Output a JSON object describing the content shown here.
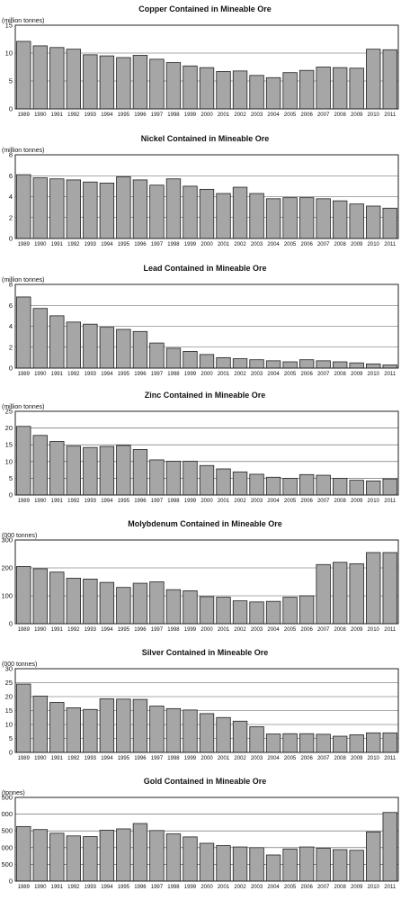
{
  "chart_data": [
    {
      "type": "bar",
      "title": "Copper Contained in Mineable Ore",
      "ylabel": "(million tonnes)",
      "categories": [
        "1989",
        "1990",
        "1991",
        "1992",
        "1993",
        "1994",
        "1995",
        "1996",
        "1997",
        "1998",
        "1999",
        "2000",
        "2001",
        "2002",
        "2003",
        "2004",
        "2005",
        "2006",
        "2007",
        "2008",
        "2009",
        "2010",
        "2011"
      ],
      "values": [
        12.1,
        11.3,
        11.0,
        10.7,
        9.7,
        9.5,
        9.2,
        9.6,
        8.9,
        8.3,
        7.7,
        7.4,
        6.7,
        6.8,
        6.0,
        5.6,
        6.5,
        6.9,
        7.5,
        7.4,
        7.3,
        10.7,
        10.6
      ],
      "ylim": [
        0,
        15
      ],
      "yticks": [
        "0",
        "5",
        "10",
        "15"
      ],
      "grid": "horizontal"
    },
    {
      "type": "bar",
      "title": "Nickel Contained in Mineable Ore",
      "ylabel": "(million tonnes)",
      "categories": [
        "1989",
        "1990",
        "1991",
        "1992",
        "1993",
        "1994",
        "1995",
        "1996",
        "1997",
        "1998",
        "1999",
        "2000",
        "2001",
        "2002",
        "2003",
        "2004",
        "2005",
        "2006",
        "2007",
        "2008",
        "2009",
        "2010",
        "2011"
      ],
      "values": [
        6.1,
        5.8,
        5.7,
        5.6,
        5.4,
        5.3,
        5.9,
        5.6,
        5.1,
        5.7,
        5.0,
        4.7,
        4.3,
        4.9,
        4.3,
        3.8,
        3.9,
        3.9,
        3.8,
        3.6,
        3.3,
        3.1,
        2.9
      ],
      "ylim": [
        0,
        8
      ],
      "yticks": [
        "0",
        "2",
        "4",
        "6",
        "8"
      ],
      "grid": "horizontal"
    },
    {
      "type": "bar",
      "title": "Lead Contained in Mineable Ore",
      "ylabel": "(million tonnes)",
      "categories": [
        "1989",
        "1990",
        "1991",
        "1992",
        "1993",
        "1994",
        "1995",
        "1996",
        "1997",
        "1998",
        "1999",
        "2000",
        "2001",
        "2002",
        "2003",
        "2004",
        "2005",
        "2006",
        "2007",
        "2008",
        "2009",
        "2010",
        "2011"
      ],
      "values": [
        6.8,
        5.7,
        5.0,
        4.4,
        4.2,
        3.9,
        3.7,
        3.5,
        2.4,
        1.9,
        1.6,
        1.3,
        1.0,
        0.9,
        0.8,
        0.7,
        0.6,
        0.8,
        0.7,
        0.6,
        0.5,
        0.4,
        0.3
      ],
      "ylim": [
        0,
        8
      ],
      "yticks": [
        "0",
        "2",
        "4",
        "6",
        "8"
      ],
      "grid": "horizontal"
    },
    {
      "type": "bar",
      "title": "Zinc Contained in Mineable Ore",
      "ylabel": "(million tonnes)",
      "categories": [
        "1989",
        "1990",
        "1991",
        "1992",
        "1993",
        "1994",
        "1995",
        "1996",
        "1997",
        "1998",
        "1999",
        "2000",
        "2001",
        "2002",
        "2003",
        "2004",
        "2005",
        "2006",
        "2007",
        "2008",
        "2009",
        "2010",
        "2011"
      ],
      "values": [
        20.5,
        17.8,
        16.0,
        14.6,
        14.2,
        14.5,
        14.8,
        13.6,
        10.5,
        10.1,
        10.1,
        8.8,
        7.8,
        6.9,
        6.2,
        5.3,
        5.0,
        6.1,
        5.9,
        5.0,
        4.4,
        4.2,
        4.8
      ],
      "ylim": [
        0,
        25
      ],
      "yticks": [
        "0",
        "5",
        "10",
        "15",
        "20",
        "25"
      ],
      "grid": "horizontal"
    },
    {
      "type": "bar",
      "title": "Molybdenum Contained in Mineable Ore",
      "ylabel": "(000 tonnes)",
      "categories": [
        "1989",
        "1990",
        "1991",
        "1992",
        "1993",
        "1994",
        "1995",
        "1996",
        "1997",
        "1998",
        "1999",
        "2000",
        "2001",
        "2002",
        "2003",
        "2004",
        "2005",
        "2006",
        "2007",
        "2008",
        "2009",
        "2010",
        "2011"
      ],
      "values": [
        205,
        197,
        185,
        163,
        160,
        148,
        130,
        145,
        150,
        122,
        118,
        97,
        95,
        82,
        78,
        80,
        95,
        100,
        212,
        220,
        215,
        255,
        255
      ],
      "ylim": [
        0,
        300
      ],
      "yticks": [
        "0",
        "100",
        "200",
        "300"
      ],
      "grid": "horizontal"
    },
    {
      "type": "bar",
      "title": "Silver Contained in Mineable Ore",
      "ylabel": "(000 tonnes)",
      "categories": [
        "1989",
        "1990",
        "1991",
        "1992",
        "1993",
        "1994",
        "1995",
        "1996",
        "1997",
        "1998",
        "1999",
        "2000",
        "2001",
        "2002",
        "2003",
        "2004",
        "2005",
        "2006",
        "2007",
        "2008",
        "2009",
        "2010",
        "2011"
      ],
      "values": [
        24.5,
        20.2,
        17.9,
        16.0,
        15.4,
        19.2,
        19.1,
        19.0,
        16.6,
        15.7,
        15.2,
        13.9,
        12.5,
        11.2,
        9.2,
        6.6,
        6.7,
        6.7,
        6.5,
        5.8,
        6.3,
        7.0,
        7.0
      ],
      "ylim": [
        0,
        30
      ],
      "yticks": [
        "0",
        "5",
        "10",
        "15",
        "20",
        "25",
        "30"
      ],
      "grid": "horizontal"
    },
    {
      "type": "bar",
      "title": "Gold Contained in Mineable Ore",
      "ylabel": "(tonnes)",
      "categories": [
        "1989",
        "1990",
        "1991",
        "1992",
        "1993",
        "1994",
        "1995",
        "1996",
        "1997",
        "1998",
        "1999",
        "2000",
        "2001",
        "2002",
        "2003",
        "2004",
        "2005",
        "2006",
        "2007",
        "2008",
        "2009",
        "2010",
        "2011"
      ],
      "values": [
        1630,
        1540,
        1430,
        1350,
        1330,
        1520,
        1560,
        1720,
        1510,
        1410,
        1320,
        1130,
        1060,
        1020,
        1000,
        780,
        960,
        1020,
        980,
        940,
        920,
        1470,
        2050
      ],
      "ylim": [
        0,
        2500
      ],
      "yticks": [
        "0",
        "500",
        "1 000",
        "1 500",
        "2 000",
        "2 500"
      ],
      "grid": "horizontal"
    }
  ]
}
